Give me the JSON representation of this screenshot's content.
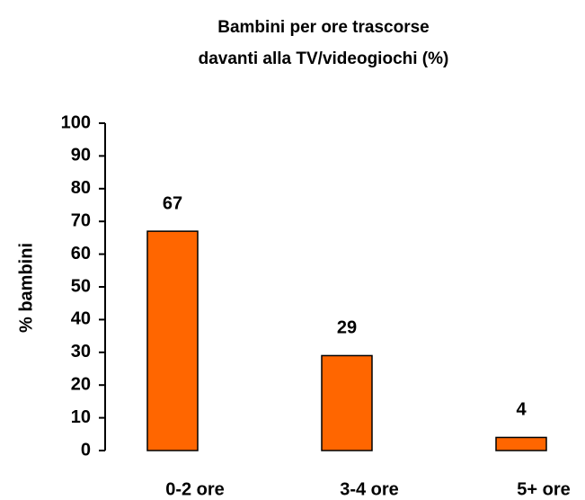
{
  "chart_data": {
    "type": "bar",
    "title": [
      "Bambini per ore trascorse",
      "davanti alla TV/videogiochi (%)"
    ],
    "y_label": "% bambini",
    "categories": [
      "0-2 ore",
      "3-4 ore",
      "5+ ore"
    ],
    "values": [
      67,
      29,
      4
    ],
    "color": "#ff6600",
    "ylim": [
      0,
      100
    ],
    "yticks": [
      0,
      10,
      20,
      30,
      40,
      50,
      60,
      70,
      80,
      90,
      100
    ]
  }
}
